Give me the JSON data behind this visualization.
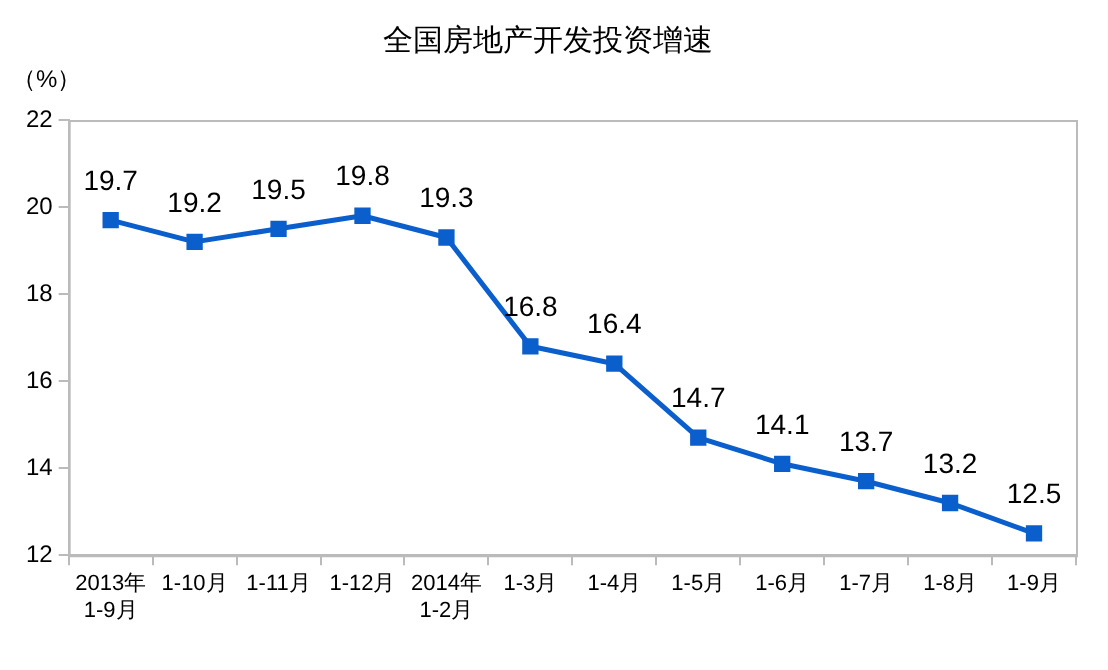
{
  "chart_data": {
    "type": "line",
    "title": "全国房地产开发投资增速",
    "ylabel": "（%）",
    "categories": [
      "2013年\n1-9月",
      "1-10月",
      "1-11月",
      "1-12月",
      "2014年\n1-2月",
      "1-3月",
      "1-4月",
      "1-5月",
      "1-6月",
      "1-7月",
      "1-8月",
      "1-9月"
    ],
    "series": [
      {
        "color": "#0b5fcc",
        "values": [
          19.7,
          19.2,
          19.5,
          19.8,
          19.3,
          16.8,
          16.4,
          14.7,
          14.1,
          13.7,
          13.2,
          12.5
        ]
      }
    ],
    "ylim": [
      12,
      22
    ],
    "yticks": [
      12,
      14,
      16,
      18,
      20,
      22
    ],
    "grid": false,
    "legend": false,
    "marker": "square",
    "line_style": "solid",
    "data_labels": true
  }
}
